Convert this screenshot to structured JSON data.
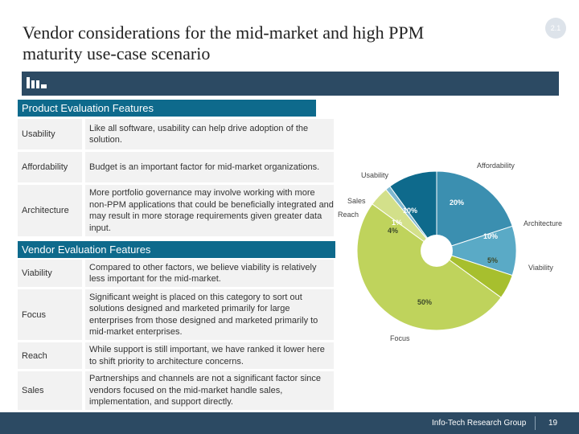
{
  "slide": {
    "title_line1": "Vendor considerations for the mid-market and high PPM",
    "title_line2": "maturity use-case scenario",
    "badge": "2.1"
  },
  "product_section": {
    "header": "Product Evaluation Features",
    "rows": [
      {
        "label": "Usability",
        "desc": "Like all software, usability can help drive adoption of the solution."
      },
      {
        "label": "Affordability",
        "desc": "Budget is an important factor for mid-market organizations."
      },
      {
        "label": "Architecture",
        "desc": "More portfolio governance may involve working with more non-PPM applications that could be beneficially integrated and may result in more storage requirements given greater data input."
      }
    ]
  },
  "vendor_section": {
    "header": "Vendor Evaluation Features",
    "rows": [
      {
        "label": "Viability",
        "desc": "Compared to other factors, we believe viability is relatively less important for the mid-market."
      },
      {
        "label": "Focus",
        "desc": "Significant weight is placed on this category to sort out solutions designed and marketed primarily for large enterprises from those designed and marketed primarily to mid-market enterprises."
      },
      {
        "label": "Reach",
        "desc": "While support is still important, we have ranked it lower here to shift priority to architecture concerns."
      },
      {
        "label": "Sales",
        "desc": "Partnerships and channels are not a significant factor since vendors focused on the mid-market handle sales, implementation, and support directly."
      }
    ]
  },
  "chart_data": {
    "type": "pie",
    "donut": true,
    "slices": [
      {
        "name": "Affordability",
        "value": 20,
        "label": "20%",
        "color": "#3b8fb0"
      },
      {
        "name": "Architecture",
        "value": 10,
        "label": "10%",
        "color": "#5aaac6"
      },
      {
        "name": "Viability",
        "value": 5,
        "label": "5%",
        "color": "#a7bf2e"
      },
      {
        "name": "Focus",
        "value": 50,
        "label": "50%",
        "color": "#bfd35c"
      },
      {
        "name": "Reach",
        "value": 4,
        "label": "4%",
        "color": "#d3e08a"
      },
      {
        "name": "Sales",
        "value": 1,
        "label": "1%",
        "color": "#7fb8cf"
      },
      {
        "name": "Usability",
        "value": 10,
        "label": "10%",
        "color": "#0e6a8c"
      }
    ]
  },
  "footer": {
    "company": "Info-Tech Research Group",
    "page": "19"
  }
}
